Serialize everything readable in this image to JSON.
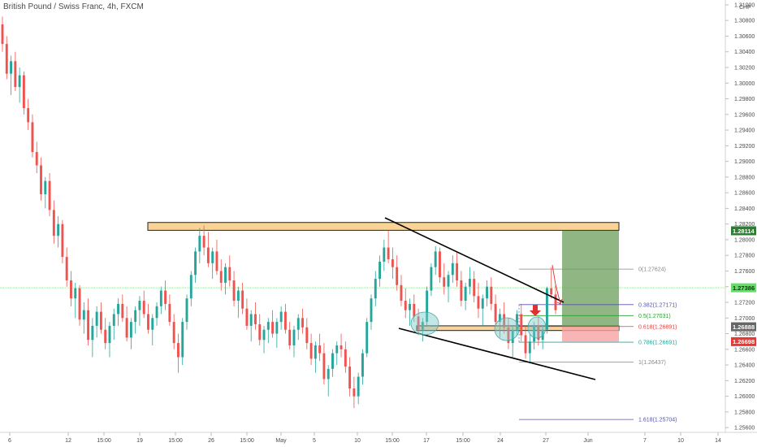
{
  "chart_data": {
    "type": "candlestick",
    "title": "British Pound / Swiss Franc, 4h, FXCM",
    "currency": "CHF",
    "ylim": [
      1.2556,
      1.3102
    ],
    "y_ticks": [
      "1.31000",
      "1.30800",
      "1.30600",
      "1.30400",
      "1.30200",
      "1.30000",
      "1.29800",
      "1.29600",
      "1.29400",
      "1.29200",
      "1.29000",
      "1.28800",
      "1.28600",
      "1.28400",
      "1.28200",
      "1.28000",
      "1.27800",
      "1.27600",
      "1.27400",
      "1.27200",
      "1.27000",
      "1.26800",
      "1.26600",
      "1.26400",
      "1.26200",
      "1.26000",
      "1.25800",
      "1.25600"
    ],
    "x_ticks": [
      "6",
      "12",
      "15:00",
      "19",
      "15:00",
      "26",
      "15:00",
      "May",
      "5",
      "10",
      "15:00",
      "17",
      "15:00",
      "24",
      "27",
      "Jun",
      "7",
      "10",
      "14"
    ],
    "grid": false,
    "colors": {
      "up": "#26a69a",
      "down": "#ef5350",
      "zone": "#f5b041",
      "tp": "#6a9e5a",
      "sl": "#f8a3a3",
      "fib_green": "#2e9e2e",
      "fib_red": "#e04040",
      "fib_blue": "#5555aa",
      "fib_teal": "#2aa198",
      "fib_gray": "#888888",
      "current_line": "#9be89b",
      "highlight_circle": "#7ec8c8",
      "arrow": "#e03030"
    },
    "price_tags": [
      {
        "label": "1.28114",
        "value": 1.28114,
        "color": "#2e7d32"
      },
      {
        "label": "1.27386",
        "value": 1.27386,
        "color": "#66dd66"
      },
      {
        "label": "1.26888",
        "value": 1.26888,
        "color": "#666666"
      },
      {
        "label": "1.26698",
        "value": 1.26698,
        "color": "#e53935"
      }
    ],
    "fib_levels": [
      {
        "ratio": "0",
        "value": 1.27624,
        "label": "0(1.27624)",
        "color": "#888888"
      },
      {
        "ratio": "0.382",
        "value": 1.27171,
        "label": "0.382(1.27171)",
        "color": "#5555aa"
      },
      {
        "ratio": "0.5",
        "value": 1.27031,
        "label": "0.5(1.27031)",
        "color": "#2e9e2e"
      },
      {
        "ratio": "0.618",
        "value": 1.26891,
        "label": "0.618(1.26891)",
        "color": "#e04040"
      },
      {
        "ratio": "0.786",
        "value": 1.26691,
        "label": "0.786(1.26691)",
        "color": "#2aa198"
      },
      {
        "ratio": "1",
        "value": 1.26437,
        "label": "1(1.26437)",
        "color": "#888888"
      },
      {
        "ratio": "1.618",
        "value": 1.25704,
        "label": "1.618(1.25704)",
        "color": "#5555aa"
      }
    ],
    "zones": [
      {
        "name": "resistance",
        "y_top": 1.2822,
        "y_bottom": 1.2812
      },
      {
        "name": "support",
        "y_top": 1.269,
        "y_bottom": 1.2684
      }
    ],
    "trade": {
      "entry": 1.26888,
      "target": 1.28114,
      "stop": 1.26698
    },
    "series": [
      {
        "type": "ohlc",
        "bars": [
          [
            1.3075,
            1.3085,
            1.304,
            1.305
          ],
          [
            1.305,
            1.306,
            1.3005,
            1.3012
          ],
          [
            1.3012,
            1.3035,
            1.2985,
            1.3028
          ],
          [
            1.3028,
            1.304,
            1.299,
            1.2995
          ],
          [
            1.2995,
            1.302,
            1.2975,
            1.301
          ],
          [
            1.301,
            1.3015,
            1.296,
            1.2968
          ],
          [
            1.2968,
            1.298,
            1.294,
            1.295
          ],
          [
            1.295,
            1.296,
            1.2905,
            1.2912
          ],
          [
            1.2912,
            1.2925,
            1.2885,
            1.2895
          ],
          [
            1.2895,
            1.2905,
            1.285,
            1.2858
          ],
          [
            1.2858,
            1.288,
            1.284,
            1.2875
          ],
          [
            1.2875,
            1.2885,
            1.283,
            1.2838
          ],
          [
            1.2838,
            1.285,
            1.2795,
            1.2805
          ],
          [
            1.2805,
            1.283,
            1.279,
            1.282
          ],
          [
            1.282,
            1.2825,
            1.277,
            1.2778
          ],
          [
            1.2778,
            1.279,
            1.274,
            1.2748
          ],
          [
            1.2748,
            1.276,
            1.2715,
            1.2725
          ],
          [
            1.2725,
            1.2745,
            1.27,
            1.2738
          ],
          [
            1.2738,
            1.2742,
            1.269,
            1.2698
          ],
          [
            1.2698,
            1.272,
            1.268,
            1.271
          ],
          [
            1.271,
            1.2725,
            1.2665,
            1.2672
          ],
          [
            1.2672,
            1.27,
            1.265,
            1.269
          ],
          [
            1.269,
            1.2715,
            1.2675,
            1.2708
          ],
          [
            1.2708,
            1.272,
            1.268,
            1.2685
          ],
          [
            1.2685,
            1.27,
            1.266,
            1.2668
          ],
          [
            1.2668,
            1.2695,
            1.265,
            1.269
          ],
          [
            1.269,
            1.2712,
            1.2672,
            1.2705
          ],
          [
            1.2705,
            1.2725,
            1.269,
            1.2718
          ],
          [
            1.2718,
            1.273,
            1.2695,
            1.27
          ],
          [
            1.27,
            1.2715,
            1.267,
            1.2675
          ],
          [
            1.2675,
            1.27,
            1.266,
            1.2695
          ],
          [
            1.2695,
            1.2715,
            1.268,
            1.271
          ],
          [
            1.271,
            1.2728,
            1.269,
            1.2722
          ],
          [
            1.2722,
            1.2735,
            1.27,
            1.2705
          ],
          [
            1.2705,
            1.2718,
            1.268,
            1.2685
          ],
          [
            1.2685,
            1.2705,
            1.2665,
            1.27
          ],
          [
            1.27,
            1.272,
            1.269,
            1.2715
          ],
          [
            1.2715,
            1.274,
            1.2705,
            1.2735
          ],
          [
            1.2735,
            1.2748,
            1.271,
            1.2718
          ],
          [
            1.2718,
            1.273,
            1.269,
            1.2695
          ],
          [
            1.2695,
            1.2705,
            1.266,
            1.2668
          ],
          [
            1.2668,
            1.268,
            1.263,
            1.265
          ],
          [
            1.265,
            1.27,
            1.264,
            1.2695
          ],
          [
            1.2695,
            1.273,
            1.2685,
            1.2725
          ],
          [
            1.2725,
            1.276,
            1.2715,
            1.2755
          ],
          [
            1.2755,
            1.279,
            1.2745,
            1.2785
          ],
          [
            1.2785,
            1.2815,
            1.277,
            1.2805
          ],
          [
            1.2805,
            1.2818,
            1.278,
            1.279
          ],
          [
            1.279,
            1.281,
            1.2765,
            1.277
          ],
          [
            1.277,
            1.279,
            1.275,
            1.2785
          ],
          [
            1.2785,
            1.28,
            1.2755,
            1.276
          ],
          [
            1.276,
            1.2775,
            1.2735,
            1.2745
          ],
          [
            1.2745,
            1.277,
            1.273,
            1.2765
          ],
          [
            1.2765,
            1.278,
            1.274,
            1.2748
          ],
          [
            1.2748,
            1.276,
            1.2715,
            1.2722
          ],
          [
            1.2722,
            1.274,
            1.27,
            1.2735
          ],
          [
            1.2735,
            1.2745,
            1.2705,
            1.2712
          ],
          [
            1.2712,
            1.2725,
            1.2685,
            1.269
          ],
          [
            1.269,
            1.271,
            1.267,
            1.2705
          ],
          [
            1.2705,
            1.272,
            1.2685,
            1.2692
          ],
          [
            1.2692,
            1.2705,
            1.2665,
            1.2672
          ],
          [
            1.2672,
            1.269,
            1.2655,
            1.2685
          ],
          [
            1.2685,
            1.27,
            1.2668,
            1.2695
          ],
          [
            1.2695,
            1.271,
            1.2675,
            1.268
          ],
          [
            1.268,
            1.27,
            1.2662,
            1.2695
          ],
          [
            1.2695,
            1.2715,
            1.2685,
            1.2708
          ],
          [
            1.2708,
            1.2718,
            1.268,
            1.2685
          ],
          [
            1.2685,
            1.2695,
            1.266,
            1.2665
          ],
          [
            1.2665,
            1.269,
            1.265,
            1.2685
          ],
          [
            1.2685,
            1.2705,
            1.2672,
            1.27
          ],
          [
            1.27,
            1.2712,
            1.268,
            1.2688
          ],
          [
            1.2688,
            1.27,
            1.266,
            1.2668
          ],
          [
            1.2668,
            1.268,
            1.264,
            1.2648
          ],
          [
            1.2648,
            1.267,
            1.263,
            1.2665
          ],
          [
            1.2665,
            1.268,
            1.2645,
            1.2655
          ],
          [
            1.2655,
            1.2668,
            1.2615,
            1.2622
          ],
          [
            1.2622,
            1.264,
            1.26,
            1.2635
          ],
          [
            1.2635,
            1.266,
            1.2625,
            1.2655
          ],
          [
            1.2655,
            1.267,
            1.264,
            1.2665
          ],
          [
            1.2665,
            1.268,
            1.265,
            1.266
          ],
          [
            1.266,
            1.267,
            1.263,
            1.2638
          ],
          [
            1.2638,
            1.265,
            1.26,
            1.261
          ],
          [
            1.261,
            1.2625,
            1.2585,
            1.26
          ],
          [
            1.26,
            1.263,
            1.259,
            1.2625
          ],
          [
            1.2625,
            1.266,
            1.2615,
            1.2655
          ],
          [
            1.2655,
            1.27,
            1.265,
            1.2695
          ],
          [
            1.2695,
            1.273,
            1.2685,
            1.2725
          ],
          [
            1.2725,
            1.276,
            1.2715,
            1.275
          ],
          [
            1.275,
            1.278,
            1.274,
            1.2772
          ],
          [
            1.2772,
            1.28,
            1.276,
            1.279
          ],
          [
            1.279,
            1.2812,
            1.277,
            1.2775
          ],
          [
            1.2775,
            1.279,
            1.275,
            1.2765
          ],
          [
            1.2765,
            1.278,
            1.2735,
            1.2742
          ],
          [
            1.2742,
            1.2755,
            1.2715,
            1.2722
          ],
          [
            1.2722,
            1.2738,
            1.27,
            1.271
          ],
          [
            1.271,
            1.2725,
            1.269,
            1.2718
          ],
          [
            1.2718,
            1.273,
            1.2695,
            1.2702
          ],
          [
            1.2702,
            1.2712,
            1.2678,
            1.2685
          ],
          [
            1.2685,
            1.27,
            1.267,
            1.2695
          ],
          [
            1.2695,
            1.274,
            1.269,
            1.2735
          ],
          [
            1.2735,
            1.277,
            1.2728,
            1.2765
          ],
          [
            1.2765,
            1.2792,
            1.2755,
            1.2785
          ],
          [
            1.2785,
            1.279,
            1.2745,
            1.2752
          ],
          [
            1.2752,
            1.277,
            1.273,
            1.274
          ],
          [
            1.274,
            1.276,
            1.272,
            1.2755
          ],
          [
            1.2755,
            1.278,
            1.2745,
            1.277
          ],
          [
            1.277,
            1.2785,
            1.274,
            1.2748
          ],
          [
            1.2748,
            1.276,
            1.2715,
            1.2722
          ],
          [
            1.2722,
            1.2745,
            1.271,
            1.274
          ],
          [
            1.274,
            1.2765,
            1.273,
            1.275
          ],
          [
            1.275,
            1.276,
            1.272,
            1.2728
          ],
          [
            1.2728,
            1.2745,
            1.27,
            1.2712
          ],
          [
            1.2712,
            1.273,
            1.269,
            1.2725
          ],
          [
            1.2725,
            1.2748,
            1.2715,
            1.274
          ],
          [
            1.274,
            1.2752,
            1.271,
            1.2718
          ],
          [
            1.2718,
            1.273,
            1.269,
            1.2695
          ],
          [
            1.2695,
            1.2712,
            1.2675,
            1.2705
          ],
          [
            1.2705,
            1.272,
            1.268,
            1.2688
          ],
          [
            1.2688,
            1.27,
            1.266,
            1.2668
          ],
          [
            1.2668,
            1.269,
            1.265,
            1.2685
          ],
          [
            1.2685,
            1.271,
            1.2678,
            1.2705
          ],
          [
            1.2705,
            1.2718,
            1.267,
            1.2678
          ],
          [
            1.2678,
            1.269,
            1.2648,
            1.2655
          ],
          [
            1.2655,
            1.268,
            1.2642,
            1.267
          ],
          [
            1.267,
            1.2695,
            1.266,
            1.269
          ],
          [
            1.269,
            1.2702,
            1.2665,
            1.2672
          ],
          [
            1.2672,
            1.269,
            1.266,
            1.2685
          ],
          [
            1.2685,
            1.274,
            1.268,
            1.2738
          ],
          [
            1.2738,
            1.2765,
            1.2725,
            1.273
          ],
          [
            1.273,
            1.2742,
            1.2705,
            1.271
          ]
        ]
      }
    ],
    "annotations": [
      {
        "type": "circle",
        "label": "retest-1"
      },
      {
        "type": "circle",
        "label": "retest-2"
      },
      {
        "type": "circle",
        "label": "retest-3"
      },
      {
        "type": "arrow-down",
        "label": "entry-arrow"
      }
    ]
  }
}
